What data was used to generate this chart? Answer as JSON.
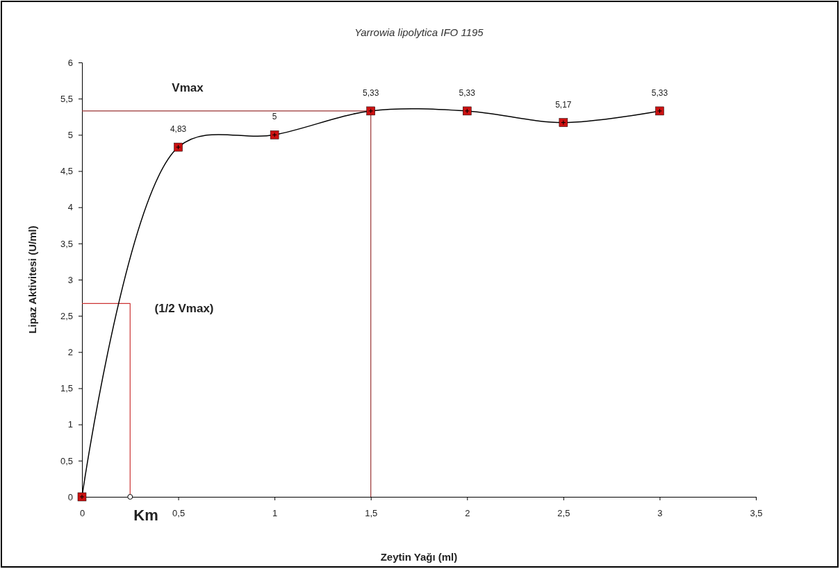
{
  "chart_data": {
    "type": "line",
    "title": "Yarrowia lipolytica IFO 1195",
    "xlabel": "Zeytin Yağı (ml)",
    "ylabel": "Lipaz Aktivitesi (U/ml)",
    "xlim": [
      0,
      3.5
    ],
    "xticks": [
      0,
      {
        "value": 0.5,
        "label": "0,5"
      },
      1,
      {
        "value": 1.5,
        "label": "1,5"
      },
      2,
      {
        "value": 2.5,
        "label": "2,5"
      },
      3,
      {
        "value": 3.5,
        "label": "3,5"
      }
    ],
    "ylim": [
      0,
      6
    ],
    "yticks": [
      0,
      {
        "value": 0.5,
        "label": "0,5"
      },
      1,
      {
        "value": 1.5,
        "label": "1,5"
      },
      2,
      {
        "value": 2.5,
        "label": "2,5"
      },
      3,
      {
        "value": 3.5,
        "label": "3,5"
      },
      4,
      {
        "value": 4.5,
        "label": "4,5"
      },
      5,
      {
        "value": 5.5,
        "label": "5,5"
      },
      6
    ],
    "grid": false,
    "series": [
      {
        "color": "#000000",
        "marker": "square",
        "x": [
          0,
          0.5,
          1,
          1.5,
          2,
          2.5,
          3
        ],
        "values": [
          0,
          4.83,
          5,
          5.33,
          5.33,
          5.17,
          5.33
        ],
        "value_labels": [
          null,
          "4,83",
          "5",
          "5,33",
          "5,33",
          "5,17",
          "5,33"
        ]
      },
      {
        "type": "line",
        "color": "#993333",
        "marker": "none",
        "x": [
          0,
          1.5,
          1.5
        ],
        "values": [
          5.33,
          5.33,
          0
        ]
      },
      {
        "type": "line",
        "color": "#cc3333",
        "marker": "none",
        "x": [
          0,
          0.25,
          0.25
        ],
        "values": [
          2.67,
          2.67,
          0
        ]
      },
      {
        "type": "scatter",
        "color": "#000000",
        "marker": "circle",
        "x": [
          0.25
        ],
        "values": [
          0
        ]
      }
    ],
    "annotations": [
      "Vmax",
      "(1/2 Vmax)",
      "Km"
    ]
  }
}
